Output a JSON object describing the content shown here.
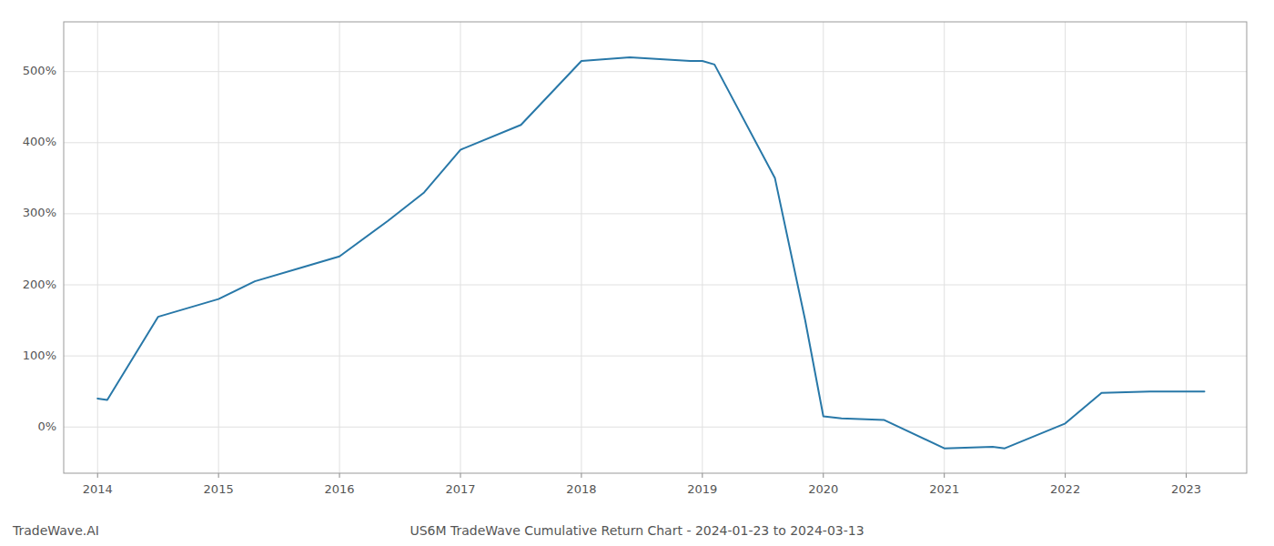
{
  "chart_data": {
    "type": "line",
    "title": "US6M TradeWave Cumulative Return Chart - 2024-01-23 to 2024-03-13",
    "annotations": [
      "TradeWave.AI"
    ],
    "color": "#2878a8",
    "grid": true,
    "x": [
      2014.0,
      2014.08,
      2014.5,
      2015.0,
      2015.3,
      2015.7,
      2016.0,
      2016.4,
      2016.7,
      2017.0,
      2017.5,
      2018.0,
      2018.4,
      2018.9,
      2019.0,
      2019.1,
      2019.6,
      2019.85,
      2020.0,
      2020.15,
      2020.5,
      2021.0,
      2021.4,
      2021.5,
      2022.0,
      2022.3,
      2022.7,
      2023.0,
      2023.15
    ],
    "values": [
      40,
      38,
      155,
      180,
      205,
      225,
      240,
      290,
      330,
      390,
      425,
      515,
      520,
      515,
      515,
      510,
      350,
      150,
      15,
      12,
      10,
      -30,
      -28,
      -30,
      5,
      48,
      50,
      50,
      50
    ],
    "xlim": [
      2013.72,
      2023.5
    ],
    "ylim": [
      -65,
      570
    ],
    "xticks": [
      2014,
      2015,
      2016,
      2017,
      2018,
      2019,
      2020,
      2021,
      2022,
      2023
    ],
    "yticks": [
      {
        "value": 0,
        "label": "0%"
      },
      {
        "value": 100,
        "label": "100%"
      },
      {
        "value": 200,
        "label": "200%"
      },
      {
        "value": 300,
        "label": "300%"
      },
      {
        "value": 400,
        "label": "400%"
      },
      {
        "value": 500,
        "label": "500%"
      }
    ]
  }
}
